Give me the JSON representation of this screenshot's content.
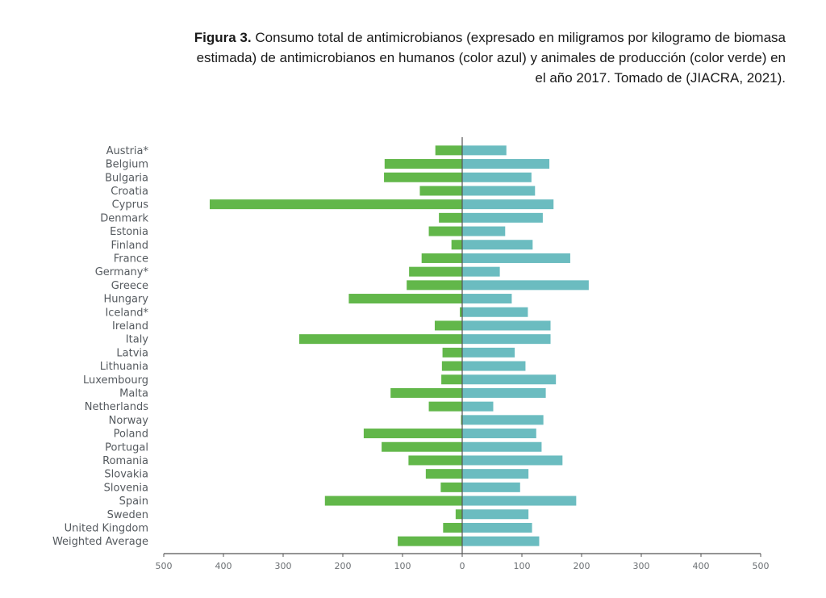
{
  "caption": {
    "label": "Figura 3.",
    "text": "Consumo total de antimicrobianos (expresado en miligramos por kilogramo de biomasa estimada) de antimicrobianos en humanos (color azul) y animales de producción (color verde) en el año 2017. Tomado de (JIACRA, 2021)."
  },
  "colors": {
    "animals": "#62b74a",
    "humans": "#6bbcc0",
    "axis": "#555555"
  },
  "chart_data": {
    "type": "bar",
    "orientation": "horizontal-diverging",
    "title": "",
    "xlabel": "",
    "ylabel": "",
    "xlim": [
      -500,
      500
    ],
    "x_ticks": [
      -500,
      -400,
      -300,
      -200,
      -100,
      0,
      100,
      200,
      300,
      400,
      500
    ],
    "x_tick_labels": [
      "500",
      "400",
      "300",
      "200",
      "100",
      "0",
      "100",
      "200",
      "300",
      "400",
      "500"
    ],
    "grid": false,
    "legend": "none",
    "categories": [
      "Austria*",
      "Belgium",
      "Bulgaria",
      "Croatia",
      "Cyprus",
      "Denmark",
      "Estonia",
      "Finland",
      "France",
      "Germany*",
      "Greece",
      "Hungary",
      "Iceland*",
      "Ireland",
      "Italy",
      "Latvia",
      "Lithuania",
      "Luxembourg",
      "Malta",
      "Netherlands",
      "Norway",
      "Poland",
      "Portugal",
      "Romania",
      "Slovakia",
      "Slovenia",
      "Spain",
      "Sweden",
      "United Kingdom",
      "Weighted Average"
    ],
    "series": [
      {
        "name": "Animales de producción (verde)",
        "side": "left",
        "values": [
          45,
          130,
          131,
          71,
          423,
          39,
          56,
          18,
          68,
          89,
          93,
          190,
          4,
          46,
          273,
          33,
          34,
          35,
          120,
          56,
          2,
          165,
          135,
          90,
          61,
          36,
          230,
          11,
          32,
          108
        ]
      },
      {
        "name": "Humanos (azul)",
        "side": "right",
        "values": [
          74,
          146,
          116,
          122,
          153,
          135,
          72,
          118,
          181,
          63,
          212,
          83,
          110,
          148,
          148,
          88,
          106,
          157,
          140,
          52,
          136,
          124,
          133,
          168,
          111,
          97,
          191,
          111,
          117,
          129
        ]
      }
    ]
  }
}
